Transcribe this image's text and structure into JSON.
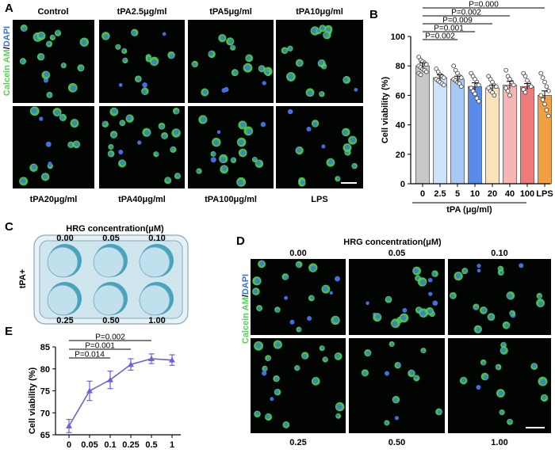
{
  "panel_letters": {
    "a": "A",
    "b": "B",
    "c": "C",
    "d": "D",
    "e": "E"
  },
  "panel_a": {
    "stain_green": "Calcein AM",
    "stain_sep": "/",
    "stain_blue": "DAPI",
    "top_labels": [
      "Control",
      "tPA2.5μg/ml",
      "tPA5μg/ml",
      "tPA10μg/ml"
    ],
    "bottom_labels": [
      "tPA20μg/ml",
      "tPA40μg/ml",
      "tPA100μg/ml",
      "LPS"
    ]
  },
  "panel_c": {
    "title": "HRG concentration(μM)",
    "side_label": "tPA+",
    "wells": [
      "0.00",
      "0.05",
      "0.10",
      "0.25",
      "0.50",
      "1.00"
    ],
    "plate_color": "#cfe6ef",
    "well_color": "#bfe0ec",
    "well_shadow": "#4aa3bd"
  },
  "panel_d": {
    "title": "HRG concentration(μM)",
    "stain_green": "Calcein AM",
    "stain_sep": "/",
    "stain_blue": "DAPI",
    "top_labels": [
      "0.00",
      "0.05",
      "0.10"
    ],
    "bottom_labels": [
      "0.25",
      "0.50",
      "1.00"
    ]
  },
  "colors": {
    "calcein": "#4fd64f",
    "dapi": "#3f6fe0",
    "line_e": "#6b63d6"
  },
  "chart_data": [
    {
      "id": "B",
      "type": "bar",
      "categories": [
        "0",
        "2.5",
        "5",
        "10",
        "20",
        "40",
        "100",
        "LPS"
      ],
      "values": [
        80,
        72,
        71,
        66,
        65,
        67,
        66,
        60
      ],
      "errors": [
        2,
        2,
        2,
        2.5,
        2,
        2.5,
        2,
        3
      ],
      "bar_colors": [
        "#c8c8c8",
        "#cfe2fb",
        "#a9c8f6",
        "#5b8be8",
        "#fbe2b8",
        "#f6b6b6",
        "#ee7b7b",
        "#f0a043"
      ],
      "points": [
        [
          86,
          84,
          83,
          82,
          81,
          80,
          79,
          78,
          77,
          76,
          75,
          74
        ],
        [
          78,
          76,
          74,
          73,
          72,
          71,
          70,
          69,
          68,
          67
        ],
        [
          80,
          77,
          75,
          73,
          72,
          71,
          70,
          69,
          68,
          66
        ],
        [
          75,
          73,
          71,
          69,
          67,
          65,
          63,
          61,
          58,
          56
        ],
        [
          73,
          71,
          69,
          67,
          66,
          65,
          63,
          62,
          60
        ],
        [
          77,
          73,
          71,
          69,
          67,
          65,
          63,
          60
        ],
        [
          75,
          73,
          70,
          68,
          66,
          64,
          62
        ],
        [
          75,
          72,
          69,
          66,
          63,
          60,
          57,
          54,
          50,
          46
        ]
      ],
      "ylabel": "Cell viability (%)",
      "xlabel": "tPA (μg/ml)",
      "ylim": [
        0,
        100
      ],
      "yticks": [
        0,
        20,
        40,
        60,
        80,
        100
      ],
      "comparisons": [
        {
          "label": "P=0.000",
          "to": "LPS"
        },
        {
          "label": "P=0.002",
          "to": "40"
        },
        {
          "label": "P=0.009",
          "to": "20"
        },
        {
          "label": "P=0.001",
          "to": "10"
        },
        {
          "label": "P=0.002",
          "to": "5"
        }
      ]
    },
    {
      "id": "E",
      "type": "line",
      "x": [
        "0",
        "0.05",
        "0.1",
        "0.25",
        "0.5",
        "1"
      ],
      "values": [
        67,
        75,
        77.5,
        81,
        82.3,
        82
      ],
      "errors": [
        1.5,
        2.2,
        2,
        1.3,
        1.1,
        1.2
      ],
      "ylabel": "Cell viability (%)",
      "ylim": [
        65,
        85
      ],
      "yticks": [
        65,
        70,
        75,
        80,
        85
      ],
      "comparisons": [
        {
          "label": "P=0.002",
          "to": "0.5"
        },
        {
          "label": "P=0.001",
          "to": "0.25"
        },
        {
          "label": "P=0.014",
          "to": "0.1"
        }
      ]
    }
  ]
}
